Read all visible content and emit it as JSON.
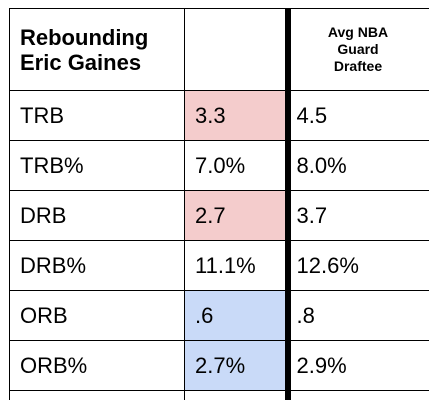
{
  "table": {
    "title_line1": "Rebounding",
    "title_line2": "Eric Gaines",
    "col2_header": "",
    "col3_header_lines": [
      "Avg NBA",
      "Guard",
      "Draftee"
    ],
    "rows": [
      {
        "label": "TRB",
        "player": "3.3",
        "player_bg": "#f4cccc",
        "draftee": "4.5"
      },
      {
        "label": "TRB%",
        "player": "7.0%",
        "player_bg": "#ffffff",
        "draftee": "8.0%"
      },
      {
        "label": "DRB",
        "player": "2.7",
        "player_bg": "#f4cccc",
        "draftee": "3.7"
      },
      {
        "label": "DRB%",
        "player": "11.1%",
        "player_bg": "#ffffff",
        "draftee": "12.6%"
      },
      {
        "label": "ORB",
        "player": ".6",
        "player_bg": "#c9daf8",
        "draftee": ".8"
      },
      {
        "label": "ORB%",
        "player": "2.7%",
        "player_bg": "#c9daf8",
        "draftee": "2.9%"
      }
    ]
  }
}
